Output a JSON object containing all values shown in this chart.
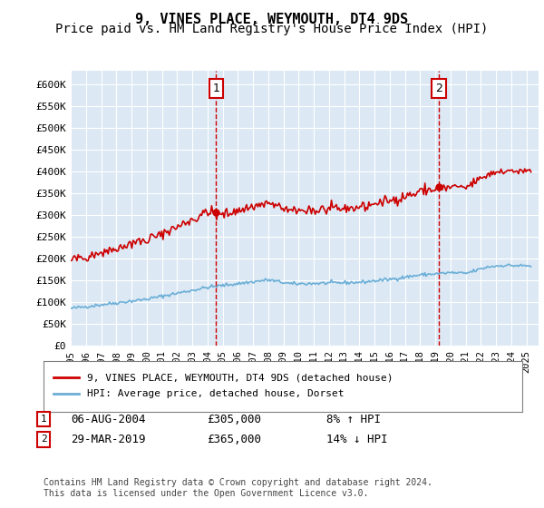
{
  "title": "9, VINES PLACE, WEYMOUTH, DT4 9DS",
  "subtitle": "Price paid vs. HM Land Registry's House Price Index (HPI)",
  "ylabel_ticks": [
    "£0",
    "£50K",
    "£100K",
    "£150K",
    "£200K",
    "£250K",
    "£300K",
    "£350K",
    "£400K",
    "£450K",
    "£500K",
    "£550K",
    "£600K"
  ],
  "ytick_values": [
    0,
    50000,
    100000,
    150000,
    200000,
    250000,
    300000,
    350000,
    400000,
    450000,
    500000,
    550000,
    600000
  ],
  "ylim": [
    0,
    620000
  ],
  "xlim_start": 1995.0,
  "xlim_end": 2025.5,
  "background_color": "#dce9f5",
  "plot_bg": "#dce9f5",
  "line1_color": "#cc0000",
  "line2_color": "#6baed6",
  "marker1_date": 2004.58,
  "marker1_value": 305000,
  "marker2_date": 2019.23,
  "marker2_value": 365000,
  "legend_label1": "9, VINES PLACE, WEYMOUTH, DT4 9DS (detached house)",
  "legend_label2": "HPI: Average price, detached house, Dorset",
  "table_rows": [
    {
      "num": "1",
      "date": "06-AUG-2004",
      "price": "£305,000",
      "change": "8% ↑ HPI"
    },
    {
      "num": "2",
      "date": "29-MAR-2019",
      "price": "£365,000",
      "change": "14% ↓ HPI"
    }
  ],
  "footnote": "Contains HM Land Registry data © Crown copyright and database right 2024.\nThis data is licensed under the Open Government Licence v3.0.",
  "title_fontsize": 11,
  "subtitle_fontsize": 10
}
